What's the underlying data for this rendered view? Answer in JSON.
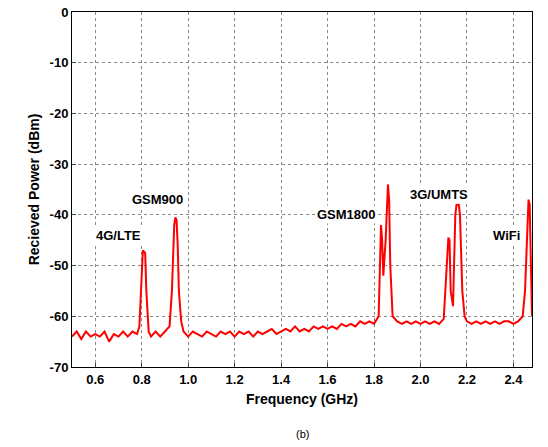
{
  "chart_data": {
    "type": "line",
    "caption": "(b)",
    "x_label": "Frequency (GHz)",
    "y_label": "Recieved Power (dBm)",
    "color": "#ff0000",
    "grid": true,
    "xlim": [
      0.5,
      2.48
    ],
    "xticks": [
      0.6,
      0.8,
      {
        "value": 1.0,
        "label": "1.0"
      },
      1.2,
      1.4,
      1.6,
      1.8,
      {
        "value": 2.0,
        "label": "2.0"
      },
      2.2,
      2.4
    ],
    "ylim": [
      -70,
      0
    ],
    "yticks": [
      -70,
      -60,
      -50,
      -40,
      -30,
      -20,
      -10,
      0
    ],
    "x": [
      0.5,
      0.52,
      0.54,
      0.56,
      0.58,
      0.6,
      0.62,
      0.64,
      0.66,
      0.68,
      0.7,
      0.72,
      0.74,
      0.76,
      0.78,
      0.79,
      0.8,
      0.805,
      0.815,
      0.82,
      0.83,
      0.84,
      0.86,
      0.88,
      0.9,
      0.92,
      0.93,
      0.94,
      0.945,
      0.95,
      0.955,
      0.96,
      0.97,
      0.98,
      1.0,
      1.02,
      1.04,
      1.06,
      1.08,
      1.1,
      1.12,
      1.14,
      1.16,
      1.18,
      1.2,
      1.22,
      1.24,
      1.26,
      1.28,
      1.3,
      1.32,
      1.34,
      1.36,
      1.38,
      1.4,
      1.42,
      1.44,
      1.46,
      1.48,
      1.5,
      1.52,
      1.54,
      1.56,
      1.58,
      1.6,
      1.62,
      1.64,
      1.66,
      1.68,
      1.7,
      1.72,
      1.74,
      1.76,
      1.78,
      1.8,
      1.82,
      1.83,
      1.835,
      1.84,
      1.85,
      1.86,
      1.865,
      1.87,
      1.88,
      1.9,
      1.92,
      1.94,
      1.96,
      1.98,
      2.0,
      2.02,
      2.04,
      2.06,
      2.08,
      2.1,
      2.11,
      2.12,
      2.125,
      2.13,
      2.14,
      2.15,
      2.155,
      2.165,
      2.17,
      2.18,
      2.19,
      2.2,
      2.22,
      2.24,
      2.26,
      2.28,
      2.3,
      2.32,
      2.34,
      2.36,
      2.38,
      2.4,
      2.42,
      2.44,
      2.45,
      2.46,
      2.465,
      2.47,
      2.475,
      2.48
    ],
    "values": [
      -64,
      -63,
      -64.5,
      -63,
      -64,
      -63.5,
      -64,
      -63,
      -65,
      -63.5,
      -64,
      -63,
      -64,
      -63,
      -63.5,
      -62,
      -52,
      -47,
      -47.5,
      -55,
      -63,
      -64,
      -63,
      -64,
      -63,
      -62,
      -55,
      -42,
      -40.5,
      -41,
      -46,
      -55,
      -61,
      -63,
      -64,
      -63,
      -63.5,
      -64,
      -63,
      -63.5,
      -64,
      -63,
      -63.5,
      -63,
      -64,
      -63,
      -63.5,
      -63,
      -64,
      -63,
      -63.5,
      -63,
      -62.5,
      -63.5,
      -63,
      -62.5,
      -63,
      -62,
      -63,
      -62.5,
      -63,
      -62,
      -62.5,
      -62,
      -62.5,
      -62,
      -62.5,
      -61.5,
      -62,
      -61.5,
      -62,
      -61,
      -61.5,
      -61,
      -61.5,
      -60,
      -42,
      -45,
      -52,
      -45,
      -34,
      -37,
      -50,
      -60,
      -61,
      -61.5,
      -61,
      -61.5,
      -61,
      -61.5,
      -61,
      -61.5,
      -61,
      -61.5,
      -60.5,
      -52,
      -44.5,
      -45,
      -55,
      -58,
      -40,
      -38,
      -38,
      -40,
      -55,
      -60,
      -61,
      -61.5,
      -61,
      -61.5,
      -61,
      -61.5,
      -61,
      -61.5,
      -61,
      -61,
      -61.5,
      -61,
      -60,
      -55,
      -40,
      -37,
      -38,
      -50,
      -60
    ],
    "annotations": [
      {
        "text": "4G/LTE",
        "x": 0.7,
        "y": -44
      },
      {
        "text": "GSM900",
        "x": 0.87,
        "y": -37
      },
      {
        "text": "GSM1800",
        "x": 1.68,
        "y": -40
      },
      {
        "text": "3G/UMTS",
        "x": 2.08,
        "y": -36
      },
      {
        "text": "WiFi",
        "x": 2.37,
        "y": -44
      }
    ]
  }
}
